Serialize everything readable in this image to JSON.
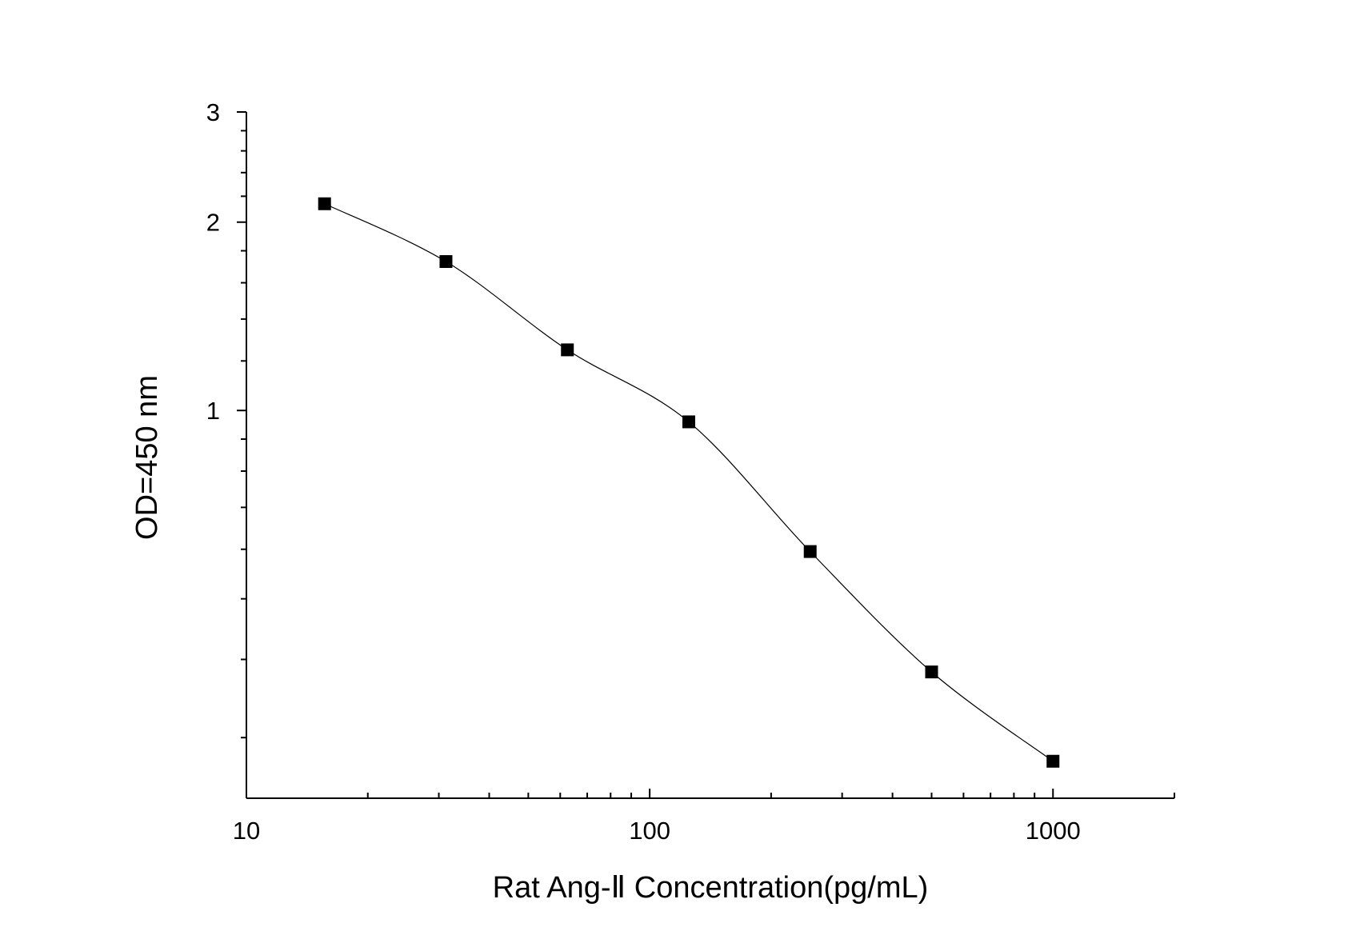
{
  "chart_data": {
    "type": "line",
    "title": "",
    "xlabel": "Rat Ang-Ⅱ Concentration(pg/mL)",
    "ylabel": "OD=450 nm",
    "x_scale": "log",
    "y_scale": "log",
    "xlim": [
      10,
      2000
    ],
    "ylim": [
      0.24,
      3
    ],
    "x_ticks": [
      10,
      100,
      1000
    ],
    "x_tick_labels": [
      "10",
      "100",
      "1000"
    ],
    "y_ticks": [
      1,
      2,
      3
    ],
    "y_tick_labels": [
      "1",
      "2",
      "3"
    ],
    "grid": false,
    "legend": "none",
    "marker": "square",
    "series": [
      {
        "x": [
          15.625,
          31.25,
          62.5,
          125,
          250,
          500,
          1000
        ],
        "values": [
          2.14,
          1.73,
          1.25,
          0.959,
          0.595,
          0.382,
          0.275
        ]
      }
    ],
    "colors": {
      "line": "#000000",
      "marker": "#000000",
      "axis": "#000000"
    }
  }
}
